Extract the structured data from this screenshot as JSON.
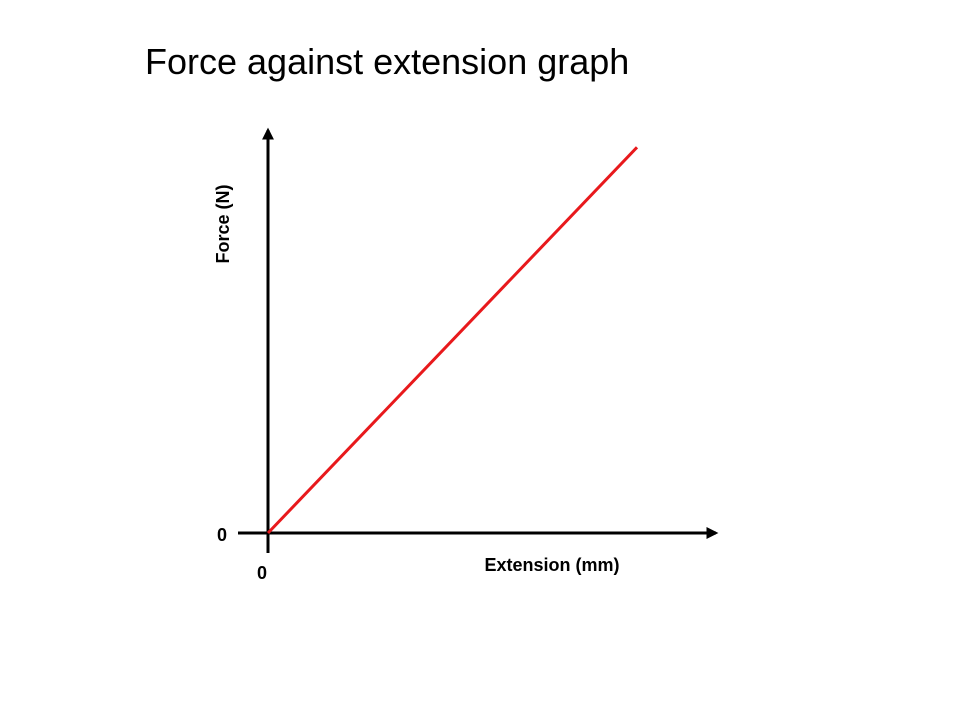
{
  "chart_data": {
    "type": "line",
    "title": "Force against extension graph",
    "x_label": "Extension (mm)",
    "y_label": "Force (N)",
    "x": [
      0,
      0.82
    ],
    "series": [
      {
        "name": "Force",
        "color": "#e8191c",
        "values": [
          0,
          0.95
        ]
      }
    ],
    "xlim": [
      0,
      1
    ],
    "ylim": [
      0,
      1
    ],
    "xticks": [
      0
    ],
    "yticks": [
      0
    ],
    "grid": false
  }
}
